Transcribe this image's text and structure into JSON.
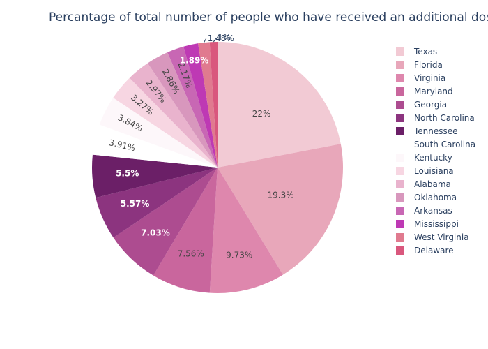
{
  "chart_data": {
    "type": "pie",
    "title": "Percantage of total number of people who have received an additional dose",
    "sort": "descending",
    "direction": "clockwise",
    "start_angle_deg": 90,
    "legend_position": "right",
    "slices": [
      {
        "label": "Texas",
        "value": 22,
        "text": "22%",
        "color": "#f2cad4",
        "text_color": "#444444",
        "text_pos": "inside"
      },
      {
        "label": "Florida",
        "value": 19.3,
        "text": "19.3%",
        "color": "#e8a7ba",
        "text_color": "#444444",
        "text_pos": "inside"
      },
      {
        "label": "Virginia",
        "value": 9.73,
        "text": "9.73%",
        "color": "#de87ad",
        "text_color": "#444444",
        "text_pos": "inside"
      },
      {
        "label": "Maryland",
        "value": 7.56,
        "text": "7.56%",
        "color": "#c9669d",
        "text_color": "#444444",
        "text_pos": "inside"
      },
      {
        "label": "Georgia",
        "value": 7.03,
        "text": "7.03%",
        "color": "#ad4c90",
        "text_color": "#ffffff",
        "text_pos": "inside"
      },
      {
        "label": "North Carolina",
        "value": 5.57,
        "text": "5.57%",
        "color": "#8c347f",
        "text_color": "#ffffff",
        "text_pos": "inside"
      },
      {
        "label": "Tennessee",
        "value": 5.5,
        "text": "5.5%",
        "color": "#6b1f67",
        "text_color": "#ffffff",
        "text_pos": "inside"
      },
      {
        "label": "South Carolina",
        "value": 3.91,
        "text": "3.91%",
        "color": "#ffffff",
        "text_color": "#444444",
        "text_pos": "inside-radial"
      },
      {
        "label": "Kentucky",
        "value": 3.84,
        "text": "3.84%",
        "color": "#fdf7fa",
        "text_color": "#444444",
        "text_pos": "inside-radial"
      },
      {
        "label": "Louisiana",
        "value": 3.27,
        "text": "3.27%",
        "color": "#f7d6e2",
        "text_color": "#444444",
        "text_pos": "inside-radial"
      },
      {
        "label": "Alabama",
        "value": 2.97,
        "text": "2.97%",
        "color": "#e9b3cd",
        "text_color": "#444444",
        "text_pos": "inside-radial"
      },
      {
        "label": "Oklahoma",
        "value": 2.86,
        "text": "2.86%",
        "color": "#d897bd",
        "text_color": "#444444",
        "text_pos": "inside-radial"
      },
      {
        "label": "Arkansas",
        "value": 2.17,
        "text": "2.17%",
        "color": "#c867b4",
        "text_color": "#444444",
        "text_pos": "inside-radial"
      },
      {
        "label": "Mississippi",
        "value": 1.89,
        "text": "1.89%",
        "color": "#be39b4",
        "text_color": "#ffffff",
        "text_pos": "inside"
      },
      {
        "label": "West Virginia",
        "value": 1.48,
        "text": "1.48%",
        "color": "#e07a8f",
        "text_color": "#2a3f5f",
        "text_pos": "outside"
      },
      {
        "label": "Delaware",
        "value": 1,
        "text": "1%",
        "color": "#d9577d",
        "text_color": "#2a3f5f",
        "text_pos": "outside"
      }
    ]
  }
}
